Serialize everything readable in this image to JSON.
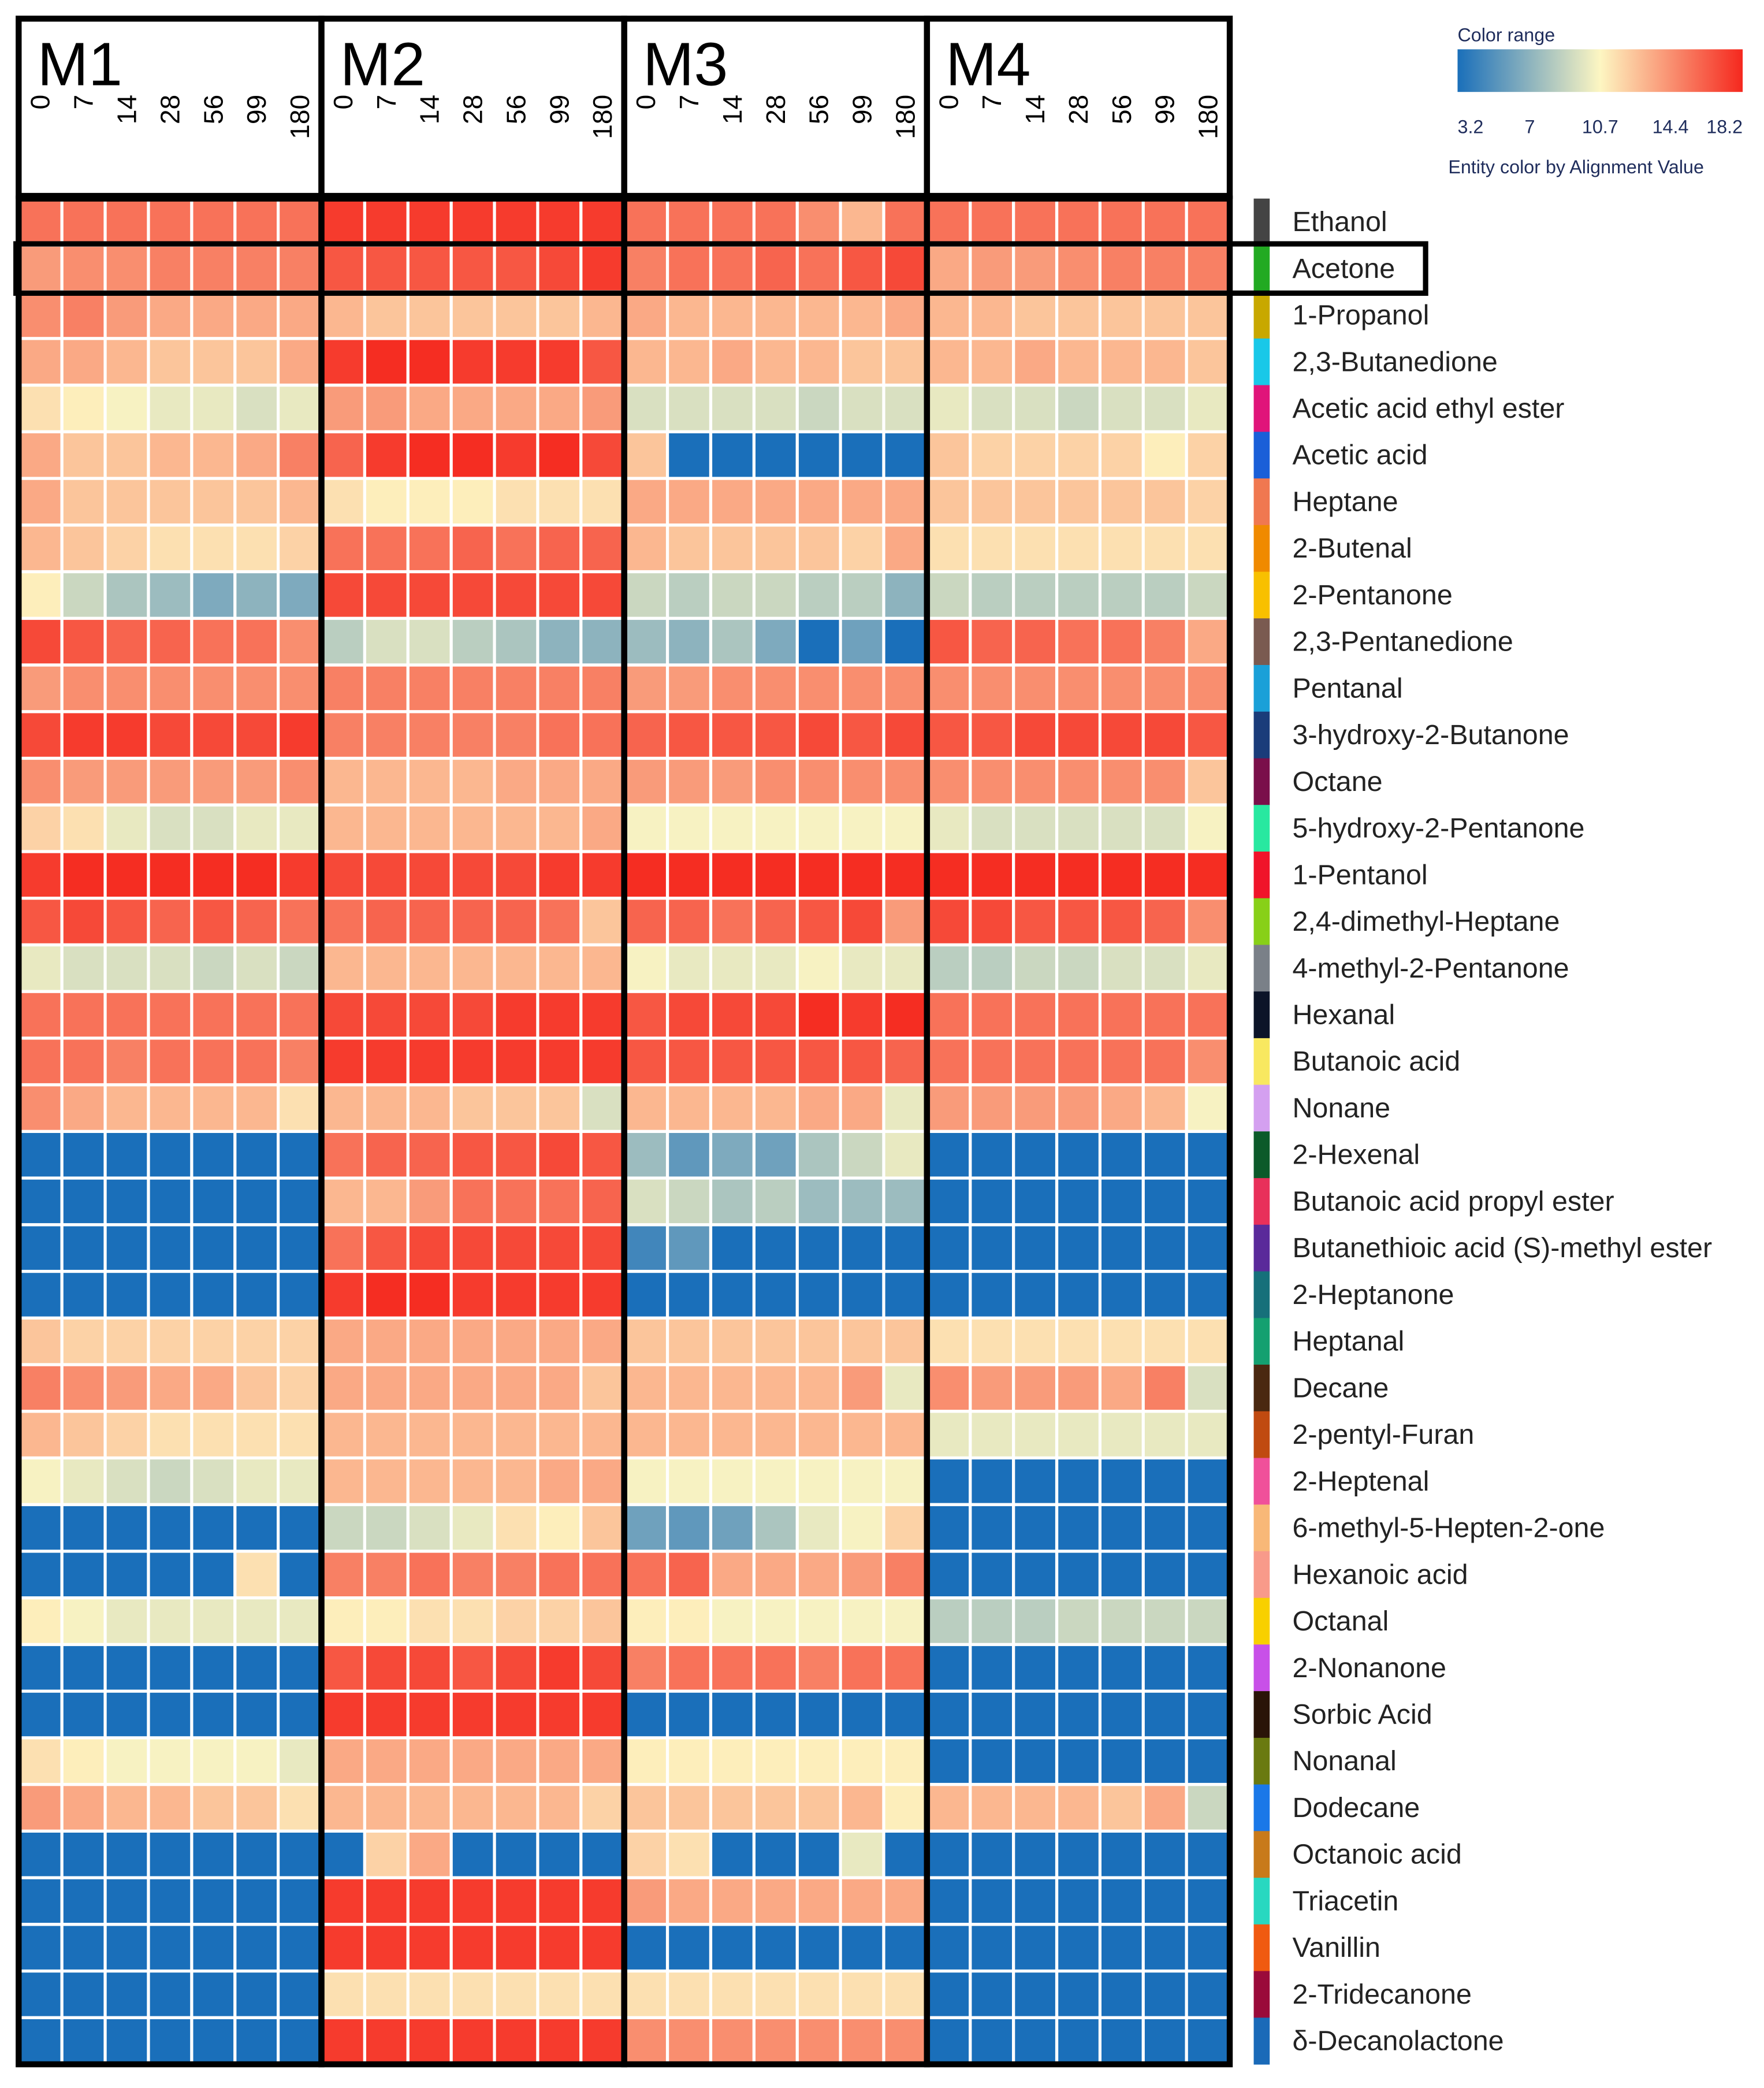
{
  "chart_data": {
    "type": "heatmap",
    "title": "",
    "groups": [
      "M1",
      "M2",
      "M3",
      "M4"
    ],
    "timepoints": [
      "0",
      "7",
      "14",
      "28",
      "56",
      "99",
      "180"
    ],
    "legend": {
      "title": "Color range",
      "ticks": [
        "3.2",
        "7",
        "10.7",
        "14.4",
        "18.2"
      ],
      "tick_values": [
        3.2,
        7,
        10.7,
        14.4,
        18.2
      ],
      "caption": "Entity color by Alignment Value",
      "range": [
        3.2,
        18.2
      ],
      "colors": [
        "#1a6fba",
        "#fdf6c2",
        "#f5281e"
      ]
    },
    "highlight": "Acetone",
    "compounds": [
      {
        "name": "Ethanol",
        "color": "#444444"
      },
      {
        "name": "Acetone",
        "color": "#22aa22"
      },
      {
        "name": "1-Propanol",
        "color": "#c8a800"
      },
      {
        "name": "2,3-Butanedione",
        "color": "#19c8e8"
      },
      {
        "name": "Acetic acid ethyl ester",
        "color": "#e0147a"
      },
      {
        "name": "Acetic acid",
        "color": "#1a5fd8"
      },
      {
        "name": "Heptane",
        "color": "#f07850"
      },
      {
        "name": "2-Butenal",
        "color": "#f08a00"
      },
      {
        "name": "2-Pentanone",
        "color": "#f8c000"
      },
      {
        "name": "2,3-Pentanedione",
        "color": "#7a5a50"
      },
      {
        "name": "Pentanal",
        "color": "#1aa0d8"
      },
      {
        "name": "3-hydroxy-2-Butanone",
        "color": "#1a3c7a"
      },
      {
        "name": "Octane",
        "color": "#7a0f4a"
      },
      {
        "name": "5-hydroxy-2-Pentanone",
        "color": "#28e8a0"
      },
      {
        "name": "1-Pentanol",
        "color": "#f0142a"
      },
      {
        "name": "2,4-dimethyl-Heptane",
        "color": "#88d018"
      },
      {
        "name": "4-methyl-2-Pentanone",
        "color": "#7a8088"
      },
      {
        "name": "Hexanal",
        "color": "#0c1428"
      },
      {
        "name": "Butanoic acid",
        "color": "#f8e860"
      },
      {
        "name": "Nonane",
        "color": "#d4a0f0"
      },
      {
        "name": "2-Hexenal",
        "color": "#0c5a2a"
      },
      {
        "name": "Butanoic acid propyl ester",
        "color": "#e8305a"
      },
      {
        "name": "Butanethioic acid (S)-methyl ester",
        "color": "#5a2a9a"
      },
      {
        "name": "2-Heptanone",
        "color": "#16707a"
      },
      {
        "name": "Heptanal",
        "color": "#14a070"
      },
      {
        "name": "Decane",
        "color": "#4a2810"
      },
      {
        "name": "2-pentyl-Furan",
        "color": "#c04a10"
      },
      {
        "name": "2-Heptenal",
        "color": "#f0509a"
      },
      {
        "name": "6-methyl-5-Hepten-2-one",
        "color": "#f8b878"
      },
      {
        "name": "Hexanoic acid",
        "color": "#f89a8a"
      },
      {
        "name": "Octanal",
        "color": "#f8d000"
      },
      {
        "name": "2-Nonanone",
        "color": "#c850e8"
      },
      {
        "name": "Sorbic Acid",
        "color": "#2a1408"
      },
      {
        "name": "Nonanal",
        "color": "#6a7a10"
      },
      {
        "name": "Dodecane",
        "color": "#1a78e8"
      },
      {
        "name": "Octanoic acid",
        "color": "#c87a1a"
      },
      {
        "name": "Triacetin",
        "color": "#28d8c0"
      },
      {
        "name": "Vanillin",
        "color": "#f05a10"
      },
      {
        "name": "2-Tridecanone",
        "color": "#9a0a3a"
      },
      {
        "name": "δ-Decanolactone",
        "color": "#1a6ab8"
      }
    ],
    "values": [
      [
        15.5,
        15.5,
        15.5,
        15.5,
        15.5,
        15.5,
        15.5,
        17.5,
        17.5,
        17.5,
        17.5,
        17.5,
        17.5,
        17.5,
        15.5,
        15.5,
        15.5,
        15.5,
        14.5,
        13,
        15.5,
        15.5,
        15.5,
        15.5,
        15.5,
        15.5,
        15.5,
        15.5
      ],
      [
        14,
        14.5,
        14.5,
        15,
        15,
        15,
        15,
        16.5,
        16.5,
        16.5,
        16.5,
        16.5,
        17,
        17.5,
        15,
        15.5,
        15.5,
        16,
        15.5,
        16.5,
        17,
        13.5,
        14,
        14,
        14.5,
        15,
        15,
        15
      ],
      [
        14.5,
        15,
        14,
        13.5,
        13.5,
        13.5,
        13.5,
        13,
        12.5,
        12.5,
        12.5,
        12.5,
        12.5,
        13,
        13.5,
        13,
        13,
        13,
        13,
        13,
        13.5,
        13,
        13,
        12.5,
        12.5,
        12.5,
        12.5,
        12.5
      ],
      [
        13.5,
        13.5,
        13,
        12.5,
        12.5,
        12.5,
        13.5,
        17.5,
        18,
        18,
        17.5,
        17.5,
        17.5,
        16.5,
        13,
        13,
        13.5,
        13,
        13,
        12.5,
        12.5,
        13,
        13,
        13.5,
        13,
        13,
        13,
        12.5
      ],
      [
        11.5,
        11,
        10.5,
        10,
        10,
        9.5,
        10,
        14,
        14,
        13.5,
        13.5,
        13.5,
        13.5,
        14,
        9.5,
        9.5,
        9.5,
        9.5,
        9,
        9.5,
        9.5,
        10,
        9.5,
        9.5,
        9,
        9.5,
        9.5,
        10
      ],
      [
        13.5,
        12.5,
        12.5,
        13,
        13,
        13.5,
        15,
        16,
        17.5,
        18,
        18,
        17.5,
        18,
        17,
        12.5,
        3.2,
        3.2,
        3.2,
        3.2,
        3.2,
        3.2,
        12.5,
        12,
        12,
        12,
        12,
        11,
        12
      ],
      [
        13.5,
        12.5,
        12.5,
        12.5,
        12.5,
        12.5,
        13,
        11.5,
        11,
        11,
        11,
        11.5,
        11.5,
        11.5,
        13.5,
        13.5,
        13.5,
        13.5,
        13.5,
        13.5,
        13.5,
        12.5,
        12.5,
        12.5,
        12.5,
        12.5,
        12.5,
        12
      ],
      [
        13,
        12.5,
        12,
        11.5,
        11.5,
        11.5,
        12,
        15.5,
        15.5,
        15.5,
        16,
        15.5,
        16,
        16,
        13,
        12.5,
        12.5,
        12.5,
        12.5,
        12,
        13.5,
        11.5,
        11.5,
        11.5,
        11.5,
        11.5,
        11.5,
        11.5
      ],
      [
        11,
        9,
        8,
        7.5,
        6.5,
        7,
        6.5,
        17,
        17,
        17,
        17,
        17,
        17,
        17,
        9,
        8.5,
        9,
        9,
        8.5,
        8.5,
        7,
        9,
        8.5,
        8.5,
        8.5,
        8.5,
        8.5,
        9
      ],
      [
        17,
        16.5,
        16,
        16,
        15.5,
        15.5,
        14.5,
        8.5,
        9.5,
        9.5,
        8.5,
        8,
        7,
        7,
        7.5,
        7,
        8,
        6.5,
        3.2,
        6,
        3.2,
        16.5,
        16,
        16,
        15.5,
        15.5,
        15,
        13.5
      ],
      [
        14,
        14.5,
        14.5,
        14.5,
        14.5,
        14.5,
        14.5,
        15,
        15,
        15,
        15,
        15,
        15,
        15,
        14,
        14,
        14.5,
        14.5,
        14.5,
        14.5,
        14.5,
        14.5,
        14.5,
        14.5,
        14.5,
        14.5,
        14.5,
        14.5
      ],
      [
        17,
        17.5,
        17.5,
        17,
        17,
        17,
        17.5,
        15,
        15,
        15,
        15,
        15,
        15.5,
        15.5,
        16,
        16.5,
        16.5,
        16.5,
        17,
        16.5,
        17,
        16.5,
        16.5,
        17,
        17,
        17,
        17,
        16.5
      ],
      [
        14.5,
        14,
        14,
        14,
        14,
        14,
        14.5,
        13,
        13,
        13,
        13,
        13.5,
        13.5,
        13.5,
        14,
        14,
        14,
        14.5,
        14.5,
        14.5,
        14.5,
        14.5,
        14.5,
        14.5,
        14.5,
        14.5,
        14.5,
        12.5
      ],
      [
        12,
        11.5,
        10,
        9.5,
        9.5,
        10,
        10,
        13,
        13,
        13,
        13,
        13,
        13,
        13.5,
        10.5,
        10.5,
        10.5,
        10.5,
        10.5,
        10.5,
        10.5,
        10,
        9.5,
        9.5,
        9.5,
        9.5,
        9.5,
        10.5
      ],
      [
        17.5,
        18,
        18,
        18,
        18,
        18,
        17.5,
        17,
        17,
        17,
        17,
        17,
        17.5,
        17.5,
        18,
        18,
        18,
        18,
        18,
        18,
        18,
        18,
        18,
        18,
        18,
        18,
        18,
        18
      ],
      [
        16.5,
        17,
        16.5,
        16,
        16.5,
        16,
        15.5,
        15.5,
        16,
        16,
        16,
        16,
        15.5,
        12.5,
        16,
        16,
        15.5,
        16,
        16.5,
        17,
        14,
        17,
        17,
        16.5,
        16.5,
        16.5,
        16,
        14.5
      ],
      [
        10,
        9.5,
        9.5,
        9.5,
        9,
        9.5,
        9,
        13,
        13,
        13,
        13,
        13,
        13,
        13,
        10.5,
        10,
        10,
        10,
        10.5,
        10,
        10,
        8.5,
        8.5,
        9,
        9,
        9.5,
        9.5,
        10
      ],
      [
        15.5,
        15.5,
        15.5,
        15.5,
        15.5,
        15.5,
        15.5,
        17,
        17,
        17,
        17,
        17.5,
        17.5,
        17.5,
        16.5,
        17,
        17,
        17,
        18,
        17.5,
        18,
        15.5,
        15.5,
        15.5,
        15.5,
        15.5,
        15.5,
        15.5
      ],
      [
        15.5,
        15.5,
        15,
        15.5,
        15.5,
        15.5,
        15,
        17.5,
        17.5,
        17.5,
        17.5,
        17.5,
        17.5,
        17.5,
        16.5,
        16.5,
        16.5,
        16.5,
        16.5,
        16.5,
        16,
        15.5,
        15.5,
        15.5,
        15.5,
        15.5,
        15.5,
        14.5
      ],
      [
        14.5,
        13.5,
        13,
        13,
        13,
        13,
        11.5,
        13,
        13,
        13,
        12.5,
        12.5,
        12.5,
        9.5,
        13,
        13,
        13,
        13,
        13.5,
        13.5,
        10,
        14,
        14,
        14,
        14,
        13.5,
        13,
        10.5
      ],
      [
        3.2,
        3.2,
        3.2,
        3.2,
        3.2,
        3.2,
        3.2,
        15.5,
        16,
        16,
        16.5,
        16.5,
        17,
        16.5,
        7.5,
        5.5,
        6.5,
        6,
        8,
        9,
        10,
        3.2,
        3.2,
        3.2,
        3.2,
        3.2,
        3.2,
        3.2
      ],
      [
        3.2,
        3.2,
        3.2,
        3.2,
        3.2,
        3.2,
        3.2,
        13,
        13,
        14,
        15.5,
        15.5,
        15.5,
        16,
        9.5,
        9,
        8,
        8.5,
        7.5,
        7.5,
        7.5,
        3.2,
        3.2,
        3.2,
        3.2,
        3.2,
        3.2,
        3.2
      ],
      [
        3.2,
        3.2,
        3.2,
        3.2,
        3.2,
        3.2,
        3.2,
        15.5,
        16.5,
        17,
        17,
        17,
        17,
        17,
        4.5,
        5.5,
        3.2,
        3.2,
        3.2,
        3.2,
        3.2,
        3.2,
        3.2,
        3.2,
        3.2,
        3.2,
        3.2,
        3.2
      ],
      [
        3.2,
        3.2,
        3.2,
        3.2,
        3.2,
        3.2,
        3.2,
        17.5,
        18,
        18,
        17.5,
        17.5,
        17.5,
        17.5,
        3.2,
        3.2,
        3.2,
        3.2,
        3.2,
        3.2,
        3.2,
        3.2,
        3.2,
        3.2,
        3.2,
        3.2,
        3.2,
        3.2
      ],
      [
        12.5,
        12,
        12,
        12,
        12,
        12,
        12,
        13.5,
        13.5,
        13.5,
        13.5,
        13.5,
        13.5,
        13.5,
        12.5,
        12.5,
        12.5,
        12.5,
        12.5,
        12.5,
        12.5,
        11.5,
        11.5,
        11.5,
        11.5,
        11.5,
        11.5,
        11.5
      ],
      [
        15,
        14.5,
        14,
        13.5,
        13.5,
        12.5,
        12,
        13.5,
        13.5,
        13.5,
        13.5,
        13.5,
        13.5,
        12.5,
        13,
        13,
        13,
        13,
        13,
        14,
        10,
        14.5,
        14,
        14,
        14,
        13.5,
        15,
        9.5
      ],
      [
        13,
        12.5,
        12,
        11.5,
        11.5,
        11.5,
        11.5,
        13,
        13,
        13,
        13,
        13,
        13,
        13,
        13,
        13,
        13,
        13,
        13,
        13,
        13,
        10,
        10,
        10,
        10,
        10,
        10,
        10
      ],
      [
        10.5,
        10,
        9.5,
        9,
        9.5,
        10,
        10,
        13,
        13,
        13,
        13,
        13,
        13.5,
        13.5,
        10.5,
        10.5,
        10.5,
        10.5,
        10.5,
        10.5,
        10.5,
        3.2,
        3.2,
        3.2,
        3.2,
        3.2,
        3.2,
        3.2
      ],
      [
        3.2,
        3.2,
        3.2,
        3.2,
        3.2,
        3.2,
        3.2,
        9,
        9,
        9.5,
        10,
        11.5,
        11,
        12.5,
        6,
        5.5,
        6,
        8,
        10,
        10.5,
        12,
        3.2,
        3.2,
        3.2,
        3.2,
        3.2,
        3.2,
        3.2
      ],
      [
        3.2,
        3.2,
        3.2,
        3.2,
        3.2,
        11.5,
        3.2,
        15,
        15,
        15.5,
        15,
        15,
        15.5,
        15.5,
        15.5,
        16,
        13.5,
        13.5,
        13.5,
        14,
        15,
        3.2,
        3.2,
        3.2,
        3.2,
        3.2,
        3.2,
        3.2
      ],
      [
        11,
        10.5,
        10,
        10,
        10,
        10,
        10,
        11,
        11,
        11.5,
        11.5,
        12,
        12,
        12.5,
        11,
        11,
        10.5,
        10.5,
        10.5,
        10.5,
        10.5,
        8.5,
        8.5,
        8.5,
        9,
        9,
        9,
        9
      ],
      [
        3.2,
        3.2,
        3.2,
        3.2,
        3.2,
        3.2,
        3.2,
        16.5,
        17,
        17,
        16.5,
        17,
        17.5,
        17,
        15,
        15.5,
        15.5,
        15.5,
        15,
        15.5,
        15.5,
        3.2,
        3.2,
        3.2,
        3.2,
        3.2,
        3.2,
        3.2
      ],
      [
        3.2,
        3.2,
        3.2,
        3.2,
        3.2,
        3.2,
        3.2,
        17.5,
        17.5,
        17.5,
        17.5,
        17.5,
        17.5,
        17.5,
        3.2,
        3.2,
        3.2,
        3.2,
        3.2,
        3.2,
        3.2,
        3.2,
        3.2,
        3.2,
        3.2,
        3.2,
        3.2,
        3.2
      ],
      [
        11.5,
        11,
        10.5,
        10.5,
        10.5,
        10.5,
        10,
        13.5,
        13.5,
        13.5,
        13.5,
        13.5,
        13.5,
        13.5,
        11,
        11,
        11,
        11,
        11,
        11,
        11,
        3.2,
        3.2,
        3.2,
        3.2,
        3.2,
        3.2,
        3.2
      ],
      [
        14,
        13.5,
        13,
        13,
        12.5,
        12.5,
        11.5,
        13,
        13,
        13,
        13,
        13,
        13,
        12,
        12.5,
        12.5,
        12.5,
        12.5,
        12.5,
        13,
        11,
        13,
        13,
        13,
        13,
        12.5,
        13.5,
        9
      ],
      [
        3.2,
        3.2,
        3.2,
        3.2,
        3.2,
        3.2,
        3.2,
        3.2,
        12,
        13.5,
        3.2,
        3.2,
        3.2,
        3.2,
        12,
        11.5,
        3.2,
        3.2,
        3.2,
        10,
        3.2,
        3.2,
        3.2,
        3.2,
        3.2,
        3.2,
        3.2,
        3.2
      ],
      [
        3.2,
        3.2,
        3.2,
        3.2,
        3.2,
        3.2,
        3.2,
        17.5,
        17.5,
        17.5,
        17.5,
        17.5,
        17.5,
        17.5,
        14,
        13.5,
        13.5,
        13.5,
        13.5,
        13.5,
        13.5,
        3.2,
        3.2,
        3.2,
        3.2,
        3.2,
        3.2,
        3.2
      ],
      [
        3.2,
        3.2,
        3.2,
        3.2,
        3.2,
        3.2,
        3.2,
        17.5,
        17.5,
        17.5,
        17.5,
        17.5,
        17.5,
        17.5,
        3.2,
        3.2,
        3.2,
        3.2,
        3.2,
        3.2,
        3.2,
        3.2,
        3.2,
        3.2,
        3.2,
        3.2,
        3.2,
        3.2
      ],
      [
        3.2,
        3.2,
        3.2,
        3.2,
        3.2,
        3.2,
        3.2,
        11.5,
        11.5,
        11.5,
        11.5,
        11.5,
        11.5,
        11.5,
        11.5,
        11.5,
        11.5,
        11.5,
        11.5,
        11.5,
        11.5,
        3.2,
        3.2,
        3.2,
        3.2,
        3.2,
        3.2,
        3.2
      ],
      [
        3.2,
        3.2,
        3.2,
        3.2,
        3.2,
        3.2,
        3.2,
        17.5,
        17.5,
        17.5,
        17.5,
        17.5,
        17.5,
        17.5,
        14.5,
        14.5,
        14.5,
        14.5,
        14.5,
        14.5,
        14.5,
        3.2,
        3.2,
        3.2,
        3.2,
        3.2,
        3.2,
        3.2
      ]
    ]
  }
}
